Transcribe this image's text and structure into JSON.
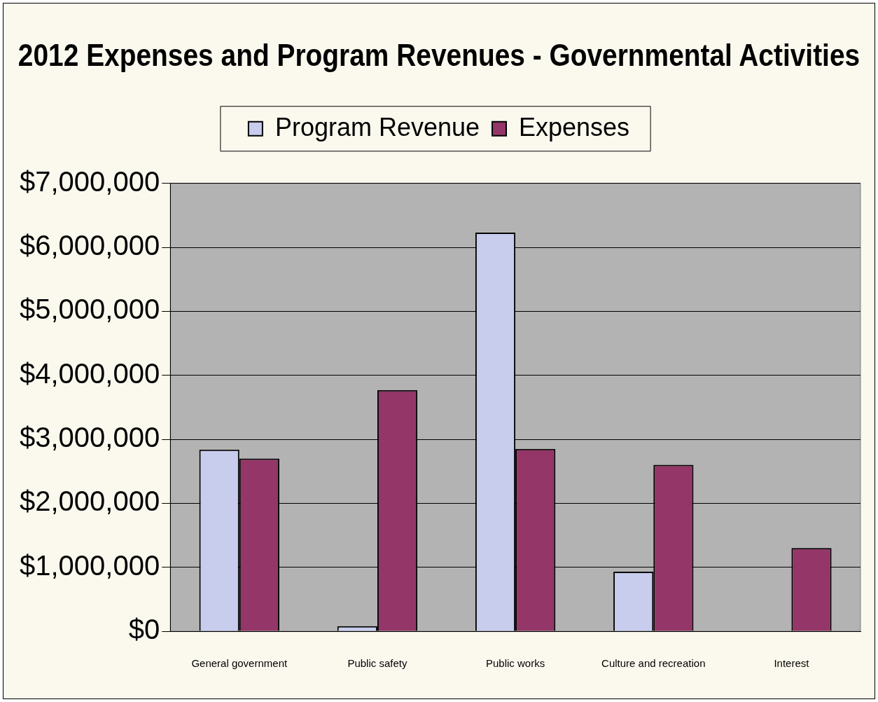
{
  "chart_data": {
    "type": "bar",
    "title": "2012 Expenses and Program Revenues - Governmental Activities",
    "categories": [
      "General government",
      "Public safety",
      "Public works",
      "Culture and recreation",
      "Interest"
    ],
    "series": [
      {
        "name": "Program Revenue",
        "color": "#c8cdee",
        "values": [
          2840000,
          80000,
          6230000,
          930000,
          0
        ]
      },
      {
        "name": "Expenses",
        "color": "#943667",
        "values": [
          2700000,
          3770000,
          2850000,
          2600000,
          1300000
        ]
      }
    ],
    "ylim": [
      0,
      7000000
    ],
    "yticks": [
      {
        "value": 0,
        "label": "$0"
      },
      {
        "value": 1000000,
        "label": "$1,000,000"
      },
      {
        "value": 2000000,
        "label": "$2,000,000"
      },
      {
        "value": 3000000,
        "label": "$3,000,000"
      },
      {
        "value": 4000000,
        "label": "$4,000,000"
      },
      {
        "value": 5000000,
        "label": "$5,000,000"
      },
      {
        "value": 6000000,
        "label": "$6,000,000"
      },
      {
        "value": 7000000,
        "label": "$7,000,000"
      }
    ],
    "grid": "y",
    "legend": "top"
  }
}
